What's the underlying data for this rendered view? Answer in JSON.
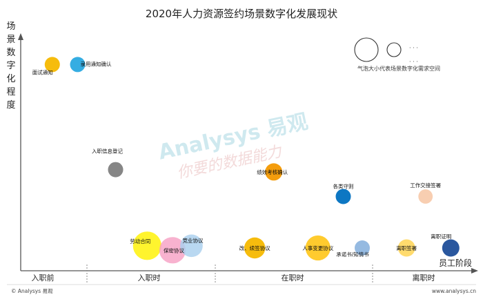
{
  "chart_data": {
    "type": "scatter",
    "title": "2020年人力资源签约场景数字化发展现状",
    "ylabel": "场景数字化程度",
    "xlabel": "员工阶段",
    "stages": [
      "入职前",
      "入职时",
      "在职时",
      "离职时"
    ],
    "bubbles": [
      {
        "label": "面试通知",
        "x": 0.5,
        "y": 86,
        "size": 1.0,
        "color": "#f5b800"
      },
      {
        "label": "录用通知确认",
        "x": 0.9,
        "y": 86,
        "size": 1.0,
        "color": "#2aa9e0"
      },
      {
        "label": "入职信息登记",
        "x": 1.5,
        "y": 39,
        "size": 1.0,
        "color": "#808080"
      },
      {
        "label": "劳动合同",
        "x": 2.0,
        "y": 5,
        "size": 3.5,
        "color": "#fff200"
      },
      {
        "label": "保密协议",
        "x": 2.4,
        "y": 3,
        "size": 3.0,
        "color": "#f7a1c4"
      },
      {
        "label": "竞业协议",
        "x": 2.7,
        "y": 5,
        "size": 2.2,
        "color": "#a9cfee"
      },
      {
        "label": "改、续签协议",
        "x": 3.7,
        "y": 4,
        "size": 1.9,
        "color": "#f5b800"
      },
      {
        "label": "绩效考核确认",
        "x": 4.0,
        "y": 38,
        "size": 1.3,
        "color": "#f39800"
      },
      {
        "label": "人事变更协议",
        "x": 4.7,
        "y": 4,
        "size": 2.7,
        "color": "#ffc000"
      },
      {
        "label": "各类守则",
        "x": 5.1,
        "y": 27,
        "size": 1.0,
        "color": "#0070c0"
      },
      {
        "label": "承诺书/知情书",
        "x": 5.4,
        "y": 4,
        "size": 1.0,
        "color": "#8fb6df"
      },
      {
        "label": "离职签署",
        "x": 6.1,
        "y": 4,
        "size": 1.3,
        "color": "#ffd966"
      },
      {
        "label": "工作交接签署",
        "x": 6.4,
        "y": 27,
        "size": 0.9,
        "color": "#f8cbad"
      },
      {
        "label": "离职证明",
        "x": 6.8,
        "y": 4,
        "size": 1.3,
        "color": "#1f4e99"
      }
    ]
  },
  "legend": {
    "text": "气泡大小代表场景数字化需求空间",
    "dots": "· · ·"
  },
  "watermark": {
    "brand": "Analysys 易观",
    "slogan": "你要的数据能力"
  },
  "footer": {
    "left": "© Analysys 易观",
    "right": "www.analysys.cn"
  },
  "colors": {
    "axis": "#555555",
    "grid_separator": "#888888"
  }
}
